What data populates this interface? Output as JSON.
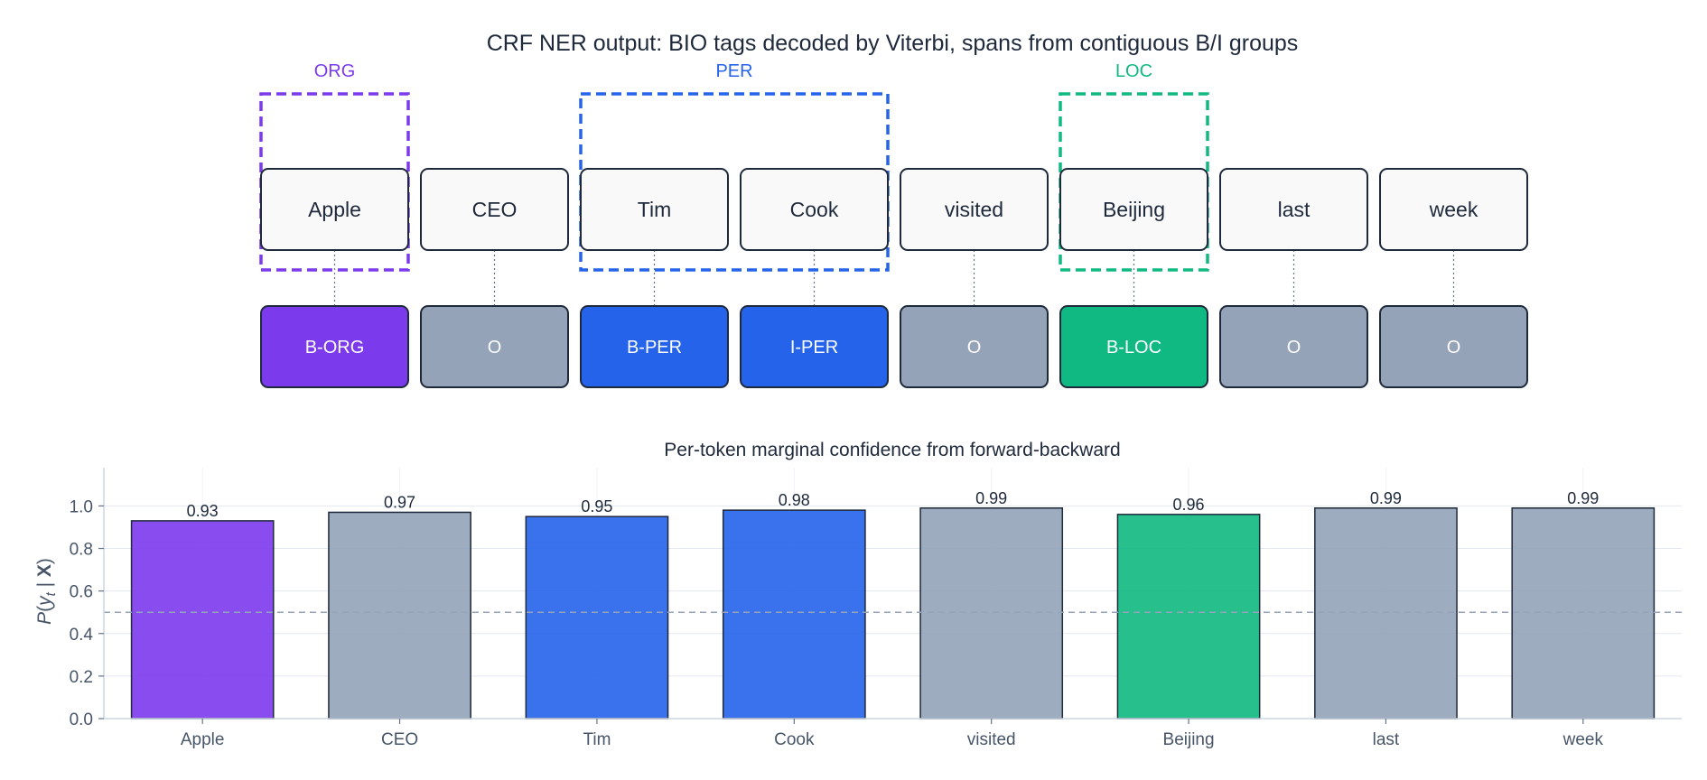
{
  "colors": {
    "ORG": "#7c3aed",
    "PER": "#2563eb",
    "LOC": "#10b981",
    "O": "#94a3b8",
    "ink": "#1e293b",
    "token_fill": "#f9f9f9",
    "axis": "#475569",
    "grid": "#e2e8f0",
    "threshold": "#94a3b8"
  },
  "diagram": {
    "title": "CRF NER output: BIO tags decoded by Viterbi, spans from contiguous B/I groups",
    "tokens": [
      "Apple",
      "CEO",
      "Tim",
      "Cook",
      "visited",
      "Beijing",
      "last",
      "week"
    ],
    "tags": [
      "B-ORG",
      "O",
      "B-PER",
      "I-PER",
      "O",
      "B-LOC",
      "O",
      "O"
    ],
    "spans": [
      {
        "label": "ORG",
        "start": 0,
        "end": 0
      },
      {
        "label": "PER",
        "start": 2,
        "end": 3
      },
      {
        "label": "LOC",
        "start": 5,
        "end": 5
      }
    ]
  },
  "chart_data": {
    "type": "bar",
    "title": "Per-token marginal confidence from forward-backward",
    "categories": [
      "Apple",
      "CEO",
      "Tim",
      "Cook",
      "visited",
      "Beijing",
      "last",
      "week"
    ],
    "values": [
      0.93,
      0.97,
      0.95,
      0.98,
      0.99,
      0.96,
      0.99,
      0.99
    ],
    "value_labels": [
      "0.93",
      "0.97",
      "0.95",
      "0.98",
      "0.99",
      "0.96",
      "0.99",
      "0.99"
    ],
    "bar_classes": [
      "ORG",
      "O",
      "PER",
      "PER",
      "O",
      "LOC",
      "O",
      "O"
    ],
    "xlabel": "",
    "ylabel": "P(y_t | X)",
    "ylabel_parts": {
      "p": "P",
      "y": "y",
      "t": "t",
      "bar": " | ",
      "x": "X"
    },
    "ylim": [
      0,
      1.18
    ],
    "yticks": [
      0.0,
      0.2,
      0.4,
      0.6,
      0.8,
      1.0
    ],
    "ytick_labels": [
      "0.0",
      "0.2",
      "0.4",
      "0.6",
      "0.8",
      "1.0"
    ],
    "threshold": 0.5,
    "grid": true
  }
}
